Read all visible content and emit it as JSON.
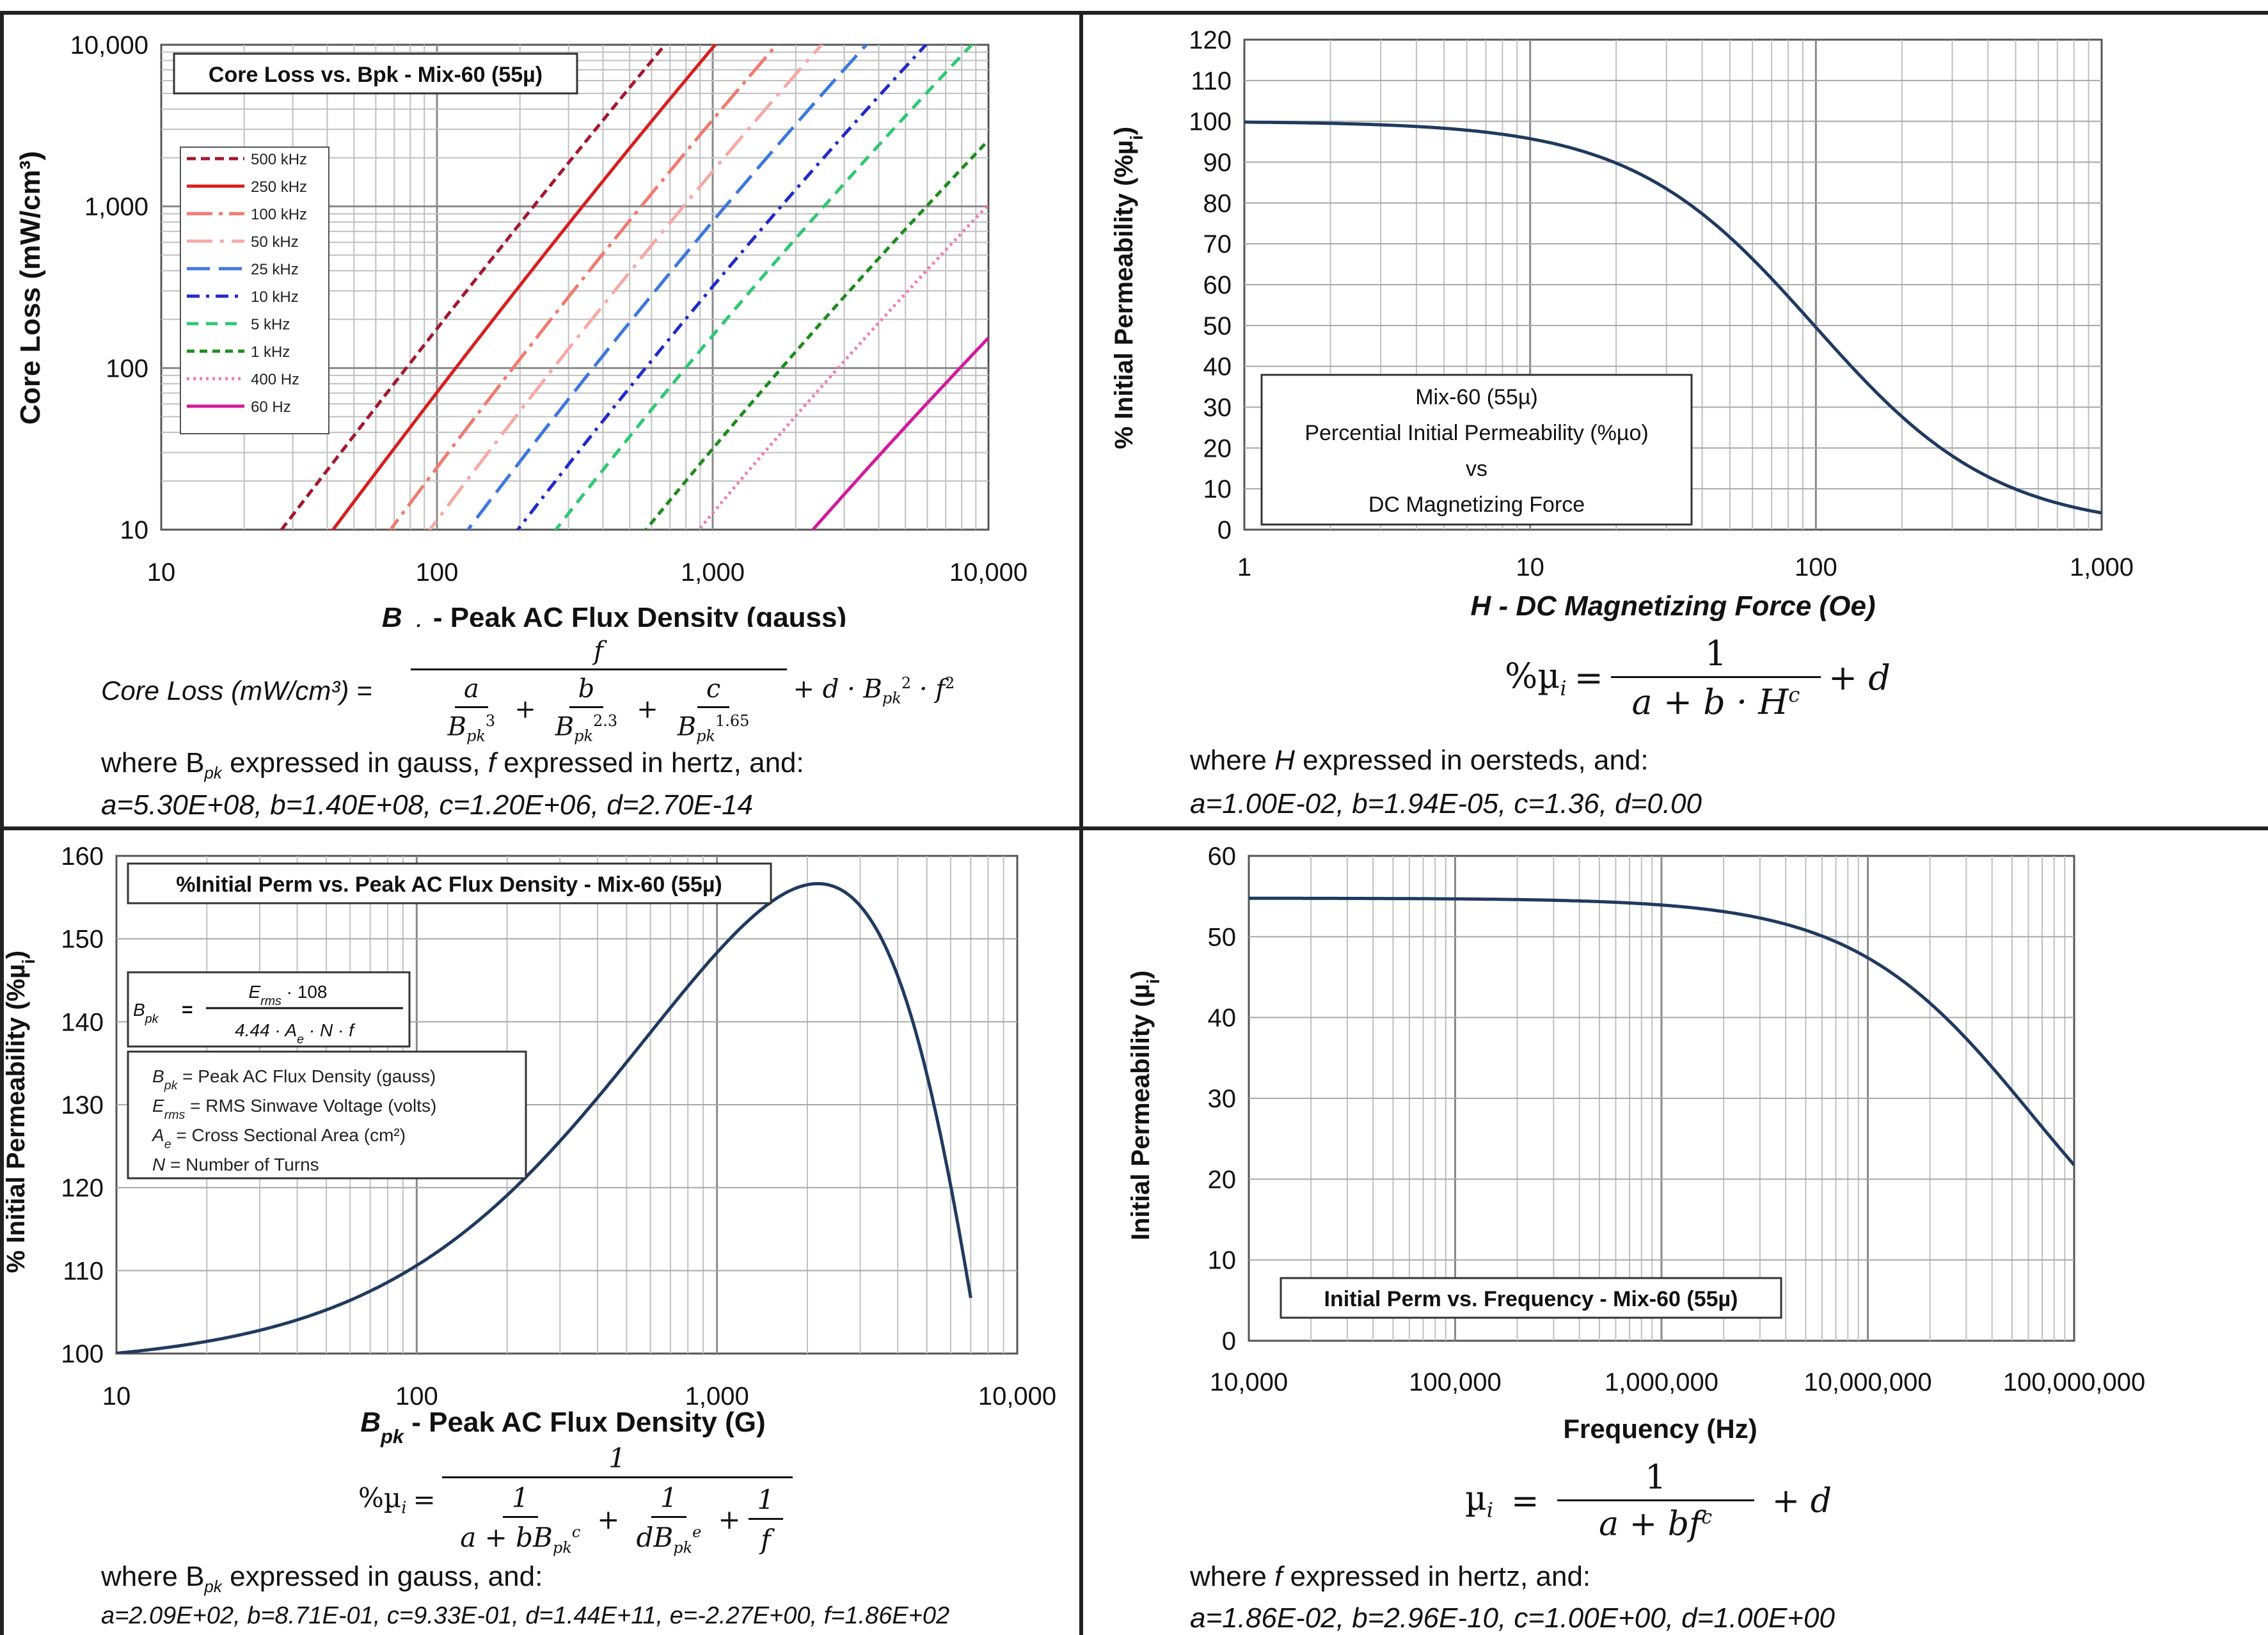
{
  "chart_data": [
    {
      "type": "line",
      "panel": "top-left",
      "title": "Core Loss vs. Bpk - Mix-60  (55µ)",
      "xlabel": "B",
      "xlabel_sub": "pk",
      "xlabel_rest": " - Peak AC Flux Density (gauss)",
      "ylabel": "Core Loss (mW/cm³)",
      "xscale": "log",
      "yscale": "log",
      "xlim": [
        10,
        10000
      ],
      "ylim": [
        10,
        10000
      ],
      "xticks": [
        10,
        100,
        1000,
        10000
      ],
      "xtick_labels": [
        "10",
        "100",
        "1,000",
        "10,000"
      ],
      "yticks": [
        10,
        100,
        1000,
        10000
      ],
      "ytick_labels": [
        "10",
        "100",
        "1,000",
        "10,000"
      ],
      "grid": true,
      "legend_position": "left",
      "coefficients": {
        "a": 530000000.0,
        "b": 140000000.0,
        "c": 1200000.0,
        "d": 2.7e-14
      },
      "series": [
        {
          "name": "500 kHz",
          "f": 500000,
          "color": "#a3182e",
          "dash": "14 8"
        },
        {
          "name": "250 kHz",
          "f": 250000,
          "color": "#d81e1e",
          "dash": ""
        },
        {
          "name": "100 kHz",
          "f": 100000,
          "color": "#f07a6e",
          "dash": "40 10 6 10"
        },
        {
          "name": "50 kHz",
          "f": 50000,
          "color": "#f5aaa5",
          "dash": "40 12 6 12"
        },
        {
          "name": "25 kHz",
          "f": 25000,
          "color": "#3c78dc",
          "dash": "36 14"
        },
        {
          "name": "10 kHz",
          "f": 10000,
          "color": "#1f2ac8",
          "dash": "20 10 5 10"
        },
        {
          "name": "5 kHz",
          "f": 5000,
          "color": "#2ec870",
          "dash": "18 12"
        },
        {
          "name": "1 kHz",
          "f": 1000,
          "color": "#1d8c1d",
          "dash": "12 8"
        },
        {
          "name": "400 Hz",
          "f": 400,
          "color": "#f07ab4",
          "dash": "4 6"
        },
        {
          "name": "60 Hz",
          "f": 60,
          "color": "#d21a9c",
          "dash": ""
        }
      ],
      "formula": {
        "lhs": "Core Loss (mW/cm³)  =",
        "f": "f",
        "a": "a",
        "b": "b",
        "c": "c",
        "bpk": "B",
        "sub": "pk",
        "e3": "3",
        "e23": "2.3",
        "e165": "1.65",
        "plus": "+",
        "tail": "+ d · B",
        "e2": "2",
        "dot_f": "· f"
      },
      "note": "where B",
      "note_sub": "pk",
      "note_rest1": " expressed in gauss, ",
      "note_f": "f",
      "note_rest2": " expressed in hertz, and:",
      "coef_text": "a=5.30E+08,   b=1.40E+08,  c=1.20E+06,   d=2.70E-14"
    },
    {
      "type": "line",
      "panel": "top-right",
      "title_lines": [
        "Mix-60  (55µ)",
        "Percential Initial Permeability (%µo)",
        "vs",
        "DC Magnetizing Force"
      ],
      "xlabel": "H - DC Magnetizing Force (Oe)",
      "ylabel": "% Initial Permeability (%µ",
      "ylabel_sub": "i",
      "ylabel_end": ")",
      "xscale": "log",
      "xlim": [
        1,
        1000
      ],
      "ylim": [
        0,
        120
      ],
      "xticks": [
        1,
        10,
        100,
        1000
      ],
      "xtick_labels": [
        "1",
        "10",
        "100",
        "1,000"
      ],
      "yticks": [
        0,
        10,
        20,
        30,
        40,
        50,
        60,
        70,
        80,
        90,
        100,
        110,
        120
      ],
      "grid": true,
      "coefficients": {
        "a": 0.01,
        "b": 1.94e-05,
        "c": 1.36,
        "d": 0
      },
      "series": [
        {
          "color": "#1f3a5f"
        }
      ],
      "formula": {
        "lhs": "%µ",
        "sub": "i",
        "eq": "=",
        "num": "1",
        "den": "a + b · H",
        "den_sup": "c",
        "tail": "+ d"
      },
      "note": "where ",
      "note_var": "H",
      "note_rest": "  expressed in oersteds, and:",
      "coef_text": "a=1.00E-02,  b=1.94E-05,  c=1.36,  d=0.00"
    },
    {
      "type": "line",
      "panel": "bottom-left",
      "title": "%Initial Perm vs. Peak AC Flux Density - Mix-60  (55µ)",
      "xlabel": "B",
      "xlabel_sub": "pk",
      "xlabel_rest": " - Peak AC Flux Density (G)",
      "ylabel": "% Initial Permeability (%µ",
      "ylabel_sub": "i",
      "ylabel_end": ")",
      "xscale": "log",
      "xlim": [
        10,
        10000
      ],
      "ylim": [
        100,
        160
      ],
      "xticks": [
        10,
        100,
        1000,
        10000
      ],
      "xtick_labels": [
        "10",
        "100",
        "1,000",
        "10,000"
      ],
      "yticks": [
        100,
        110,
        120,
        130,
        140,
        150,
        160
      ],
      "grid": true,
      "coefficients": {
        "a": 209,
        "b": 0.871,
        "c": 0.933,
        "d": 144000000000.0,
        "e": -2.27,
        "f": 186
      },
      "series": [
        {
          "color": "#1f3a5f"
        }
      ],
      "bpk_box": {
        "lhs": "B",
        "lhs_sub": "pk",
        "eq": "=",
        "num": "E",
        "num_sub": "rms",
        "num_rest": " · 10",
        "num_sup": "8",
        "den": "4.44 · A",
        "den_sub": "e",
        "den_rest": " · N · f"
      },
      "legend_lines": [
        {
          "v": "B",
          "s": "pk",
          "t": " = Peak AC Flux Density (gauss)"
        },
        {
          "v": "E",
          "s": "rms",
          "t": " = RMS Sinwave Voltage (volts)"
        },
        {
          "v": "A",
          "s": "e",
          "t": " = Cross Sectional Area (cm²)"
        },
        {
          "v": "N",
          "s": "",
          "t": " = Number of Turns"
        }
      ],
      "formula": {
        "lhs": "%µ",
        "sub": "i",
        "eq": "=",
        "num": "1",
        "one": "1",
        "d1": "a + bB",
        "d1_sub": "pk",
        "d1_sup": "c",
        "plus": "+",
        "d2": "dB",
        "d2_sub": "pk",
        "d2_sup": "e",
        "d3": "f"
      },
      "note": "where B",
      "note_sub": "pk",
      "note_rest": "  expressed in gauss, and:",
      "coef_text": "a=2.09E+02, b=8.71E-01, c=9.33E-01, d=1.44E+11, e=-2.27E+00, f=1.86E+02"
    },
    {
      "type": "line",
      "panel": "bottom-right",
      "title": "Initial Perm vs. Frequency - Mix-60  (55µ)",
      "xlabel": "Frequency (Hz)",
      "ylabel": "Initial Permeability (µ",
      "ylabel_sub": "i",
      "ylabel_end": ")",
      "xscale": "log",
      "xlim": [
        10000,
        100000000
      ],
      "ylim": [
        0,
        60
      ],
      "xticks": [
        10000,
        100000,
        1000000,
        10000000,
        100000000
      ],
      "xtick_labels": [
        "10,000",
        "100,000",
        "1,000,000",
        "10,000,000",
        "100,000,000"
      ],
      "yticks": [
        0,
        10,
        20,
        30,
        40,
        50,
        60
      ],
      "grid": true,
      "coefficients": {
        "a": 0.0186,
        "b": 2.96e-10,
        "c": 1.0,
        "d": 1.0
      },
      "series": [
        {
          "color": "#1f3a5f"
        }
      ],
      "formula": {
        "lhs": "µ",
        "sub": "i",
        "eq": "=",
        "num": "1",
        "den": "a  +  bf",
        "den_sup": "c",
        "tail": "+  d"
      },
      "note": "where ",
      "note_var": "f",
      "note_rest": " expressed in hertz, and:",
      "coef_text": "a=1.86E-02,   b=2.96E-10,  c=1.00E+00,   d=1.00E+00"
    }
  ]
}
